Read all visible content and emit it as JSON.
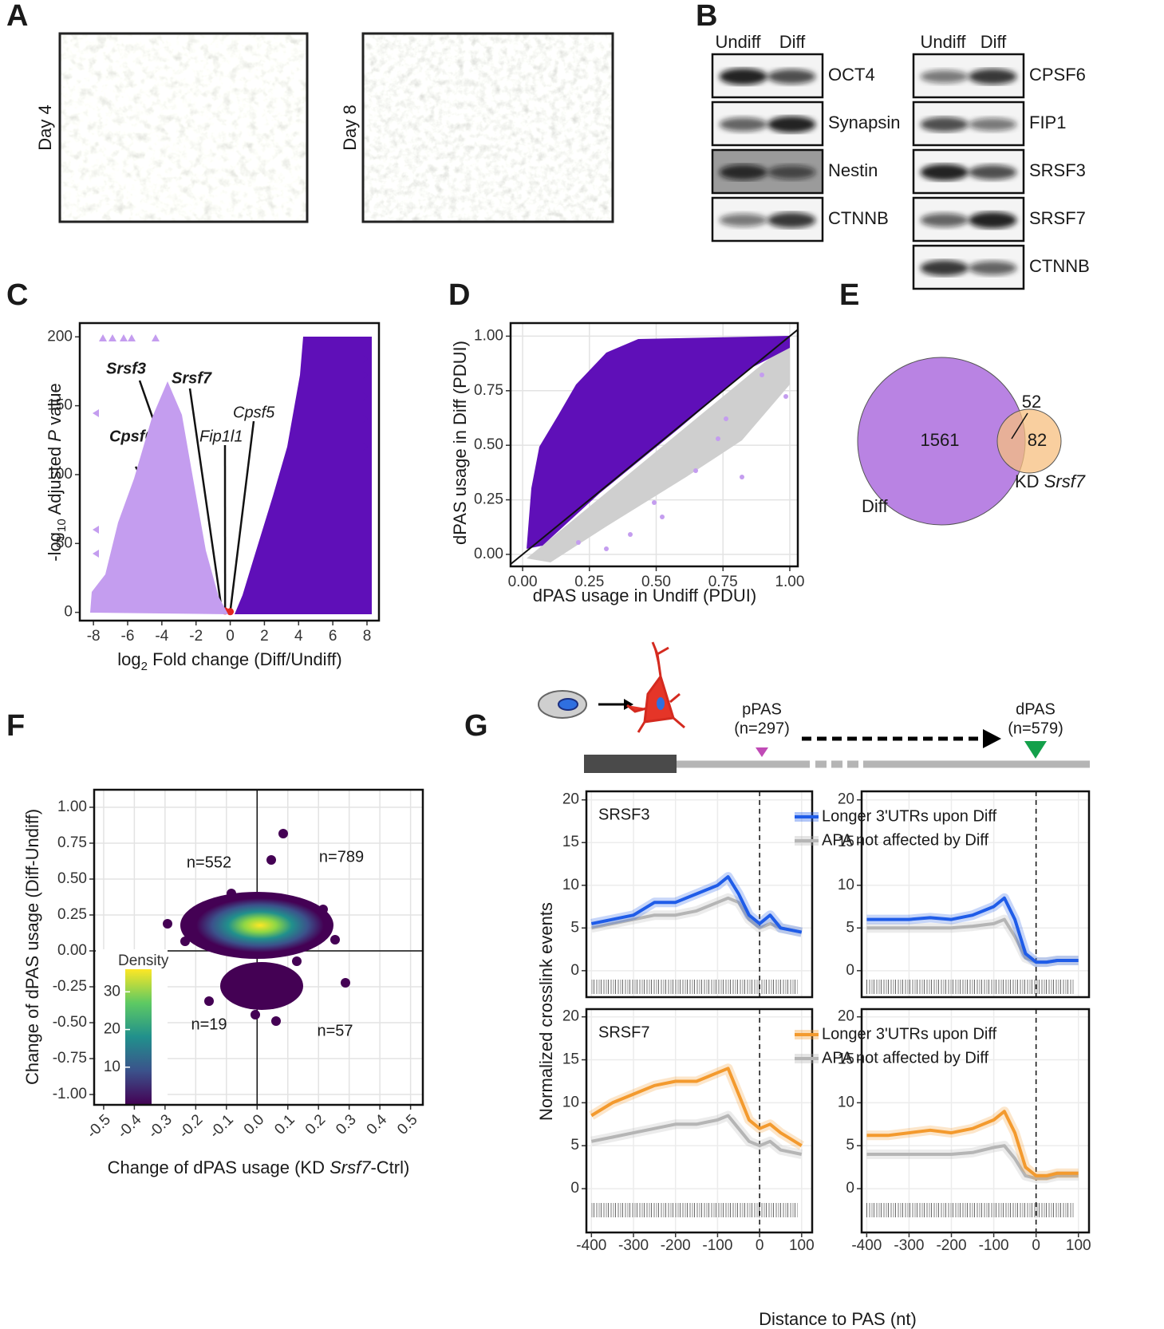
{
  "panel_labels": {
    "a": "A",
    "b": "B",
    "c": "C",
    "d": "D",
    "e": "E",
    "f": "F",
    "g": "G"
  },
  "micrographs": [
    "Day 4",
    "Day 8"
  ],
  "western_blot": {
    "columns": [
      "Undiff",
      "Diff"
    ],
    "left": [
      "OCT4",
      "Synapsin",
      "Nestin",
      "CTNNB"
    ],
    "right": [
      "CPSF6",
      "FIP1",
      "SRSF3",
      "SRSF7",
      "CTNNB"
    ]
  },
  "chart_data": [
    {
      "type": "volcano",
      "xlabel": [
        "log",
        "2",
        " Fold change (Diff/Undiff)"
      ],
      "ylabel": [
        "-log",
        "10",
        " Adjusted ",
        "P",
        " value"
      ],
      "xlim": [
        -8.8,
        8.7
      ],
      "xticks": [
        -8,
        -6,
        -4,
        -2,
        0,
        2,
        4,
        6,
        8
      ],
      "ylim": [
        -6,
        210
      ],
      "yticks": [
        0,
        50,
        100,
        150,
        200
      ],
      "colors": {
        "down": "#c49def",
        "up": "#5f0fb8",
        "highlight": "#e3261f"
      },
      "annotations": [
        {
          "text": "Srsf3",
          "x": -0.7,
          "y": 5,
          "bold": true
        },
        {
          "text": "Srsf7",
          "x": -0.5,
          "y": 2,
          "bold": true
        },
        {
          "text": "Cpsf6",
          "x": -0.9,
          "y": 4,
          "bold": true
        },
        {
          "text": "Fip1l1",
          "x": -0.3,
          "y": 1,
          "bold": false
        },
        {
          "text": "Cpsf5",
          "x": 0,
          "y": 0.5,
          "bold": false
        }
      ]
    },
    {
      "type": "scatter",
      "xlabel": "dPAS usage in Undiff (PDUI)",
      "ylabel": "dPAS usage in Diff (PDUI)",
      "xlim": [
        -0.045,
        1.03
      ],
      "ylim": [
        -0.055,
        1.06
      ],
      "xticks": [
        {
          "value": 0,
          "label": "0.00"
        },
        0.25,
        {
          "value": 0.5,
          "label": "0.50"
        },
        0.75,
        {
          "value": 1,
          "label": "1.00"
        }
      ],
      "yticks": [
        {
          "value": 0,
          "label": "0.00"
        },
        0.25,
        {
          "value": 0.5,
          "label": "0.50"
        },
        0.75,
        {
          "value": 1,
          "label": "1.00"
        }
      ],
      "grid": true,
      "diagonal": true
    },
    {
      "type": "venn",
      "sets": [
        {
          "name": [
            "Diff"
          ],
          "only": 1561,
          "color": "#b983e3"
        },
        {
          "name": [
            "KD ",
            "Srsf7"
          ],
          "only": 82,
          "color": "#f7bf7f"
        }
      ],
      "overlap": 52
    },
    {
      "type": "density",
      "xlabel": [
        "Change of dPAS usage (KD ",
        "Srsf7",
        "-Ctrl)"
      ],
      "ylabel": "Change of dPAS usage (Diff-Undiff)",
      "xlim": [
        -0.531,
        0.54
      ],
      "ylim": [
        -1.072,
        1.122
      ],
      "xticks": [
        -0.5,
        -0.4,
        -0.3,
        -0.2,
        -0.1,
        {
          "value": 0,
          "label": "0.0"
        },
        0.1,
        0.2,
        0.3,
        0.4,
        0.5
      ],
      "yticks": [
        {
          "value": 1,
          "label": "1.00"
        },
        0.75,
        {
          "value": 0.5,
          "label": "0.50"
        },
        0.25,
        {
          "value": 0,
          "label": "0.00"
        },
        -0.25,
        {
          "value": -0.5,
          "label": "-0.50"
        },
        -0.75,
        {
          "value": -1,
          "label": "-1.00"
        }
      ],
      "grid": true,
      "hline": 0,
      "vline": 0,
      "quadrant_counts": [
        "n=552",
        "n=789",
        "n=19",
        "n=57"
      ],
      "colorbar": {
        "title": "Density",
        "lim": [
          0,
          36
        ],
        "ticks": [
          10,
          20,
          30
        ]
      }
    },
    {
      "type": "line",
      "schematic": {
        "ppas": "pPAS",
        "ppas_n": "(n=297)",
        "dpas": "dPAS",
        "dpas_n": "(n=579)"
      },
      "ylabel": "Normalized crosslink events",
      "xlabel": "Distance to PAS (nt)",
      "x": [
        -400,
        -350,
        -300,
        -250,
        -200,
        -150,
        -100,
        -75,
        -50,
        -25,
        0,
        25,
        50,
        100
      ],
      "xlim": [
        -412,
        125
      ],
      "xticks": [
        -400,
        -300,
        -200,
        -100,
        0,
        100
      ],
      "vline": 0,
      "rows": [
        {
          "label": "SRSF3",
          "ylim": [
            -3.1,
            21
          ],
          "yticks": [
            0,
            5,
            10,
            15,
            20
          ],
          "series": [
            {
              "name": "Longer 3'UTRs upon Diff",
              "color": "#1f5ce8",
              "left": [
                5.5,
                6,
                6.5,
                8,
                8,
                9,
                10,
                11,
                9,
                6.5,
                5.5,
                6.5,
                5,
                4.5
              ],
              "right": [
                6,
                6,
                6,
                6.2,
                6,
                6.5,
                7.5,
                8.5,
                6,
                2,
                1,
                1,
                1.2,
                1.2
              ]
            },
            {
              "name": "APA not affected by Diff",
              "color": "#b5b5b5",
              "left": [
                5,
                5.5,
                6,
                6.5,
                6.5,
                7,
                8,
                8.5,
                8,
                6,
                5,
                5.5,
                5,
                4.5
              ],
              "right": [
                5,
                5,
                5,
                5,
                5,
                5.2,
                5.5,
                6,
                4,
                1.5,
                1,
                1,
                1.2,
                1.2
              ]
            }
          ]
        },
        {
          "label": "SRSF7",
          "ylim": [
            -5.1,
            20.9
          ],
          "yticks": [
            0,
            5,
            10,
            15,
            20
          ],
          "series": [
            {
              "name": "Longer 3'UTRs upon Diff",
              "color": "#f39a2e",
              "left": [
                8.5,
                10,
                11,
                12,
                12.5,
                12.5,
                13.5,
                14,
                11,
                8,
                7,
                7.5,
                6.5,
                5
              ],
              "right": [
                6.2,
                6.2,
                6.5,
                6.8,
                6.5,
                7,
                8,
                9,
                6.5,
                2.5,
                1.5,
                1.5,
                1.8,
                1.8
              ]
            },
            {
              "name": "APA not affected by Diff",
              "color": "#b5b5b5",
              "left": [
                5.5,
                6,
                6.5,
                7,
                7.5,
                7.5,
                8,
                8.5,
                7,
                5.5,
                5,
                5.5,
                4.5,
                4
              ],
              "right": [
                4,
                4,
                4,
                4,
                4,
                4.2,
                4.8,
                5,
                3.5,
                1.5,
                1.2,
                1.2,
                1.5,
                1.5
              ]
            }
          ]
        }
      ]
    }
  ]
}
